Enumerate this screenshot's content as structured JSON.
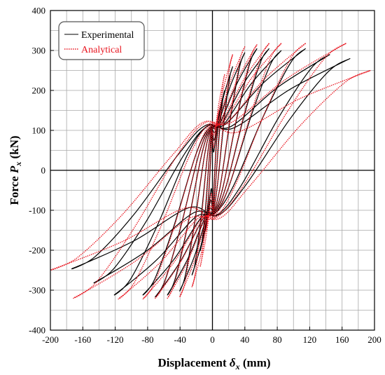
{
  "chart_data": {
    "type": "line",
    "title": "",
    "xlabel": "Displacement",
    "xlabel_symbol": "δ",
    "xlabel_sub": "x",
    "xlabel_unit": "(mm)",
    "ylabel": "Force",
    "ylabel_symbol": "P",
    "ylabel_sub": "x",
    "ylabel_unit": "(kN)",
    "xlim": [
      -200,
      200
    ],
    "ylim": [
      -400,
      400
    ],
    "xticks": [
      -200,
      -160,
      -120,
      -80,
      -40,
      0,
      40,
      80,
      120,
      160,
      200
    ],
    "yticks": [
      -400,
      -300,
      -200,
      -100,
      0,
      100,
      200,
      300,
      400
    ],
    "xgrid_step": 20,
    "ygrid_step": 50,
    "grid": true,
    "legend": "top-left",
    "series": [
      {
        "name": "Experimental",
        "color": "#000000",
        "style": "solid",
        "loops": [
          {
            "amp_pos": 8,
            "amp_neg": -8,
            "f_pos": 120,
            "f_neg": -120
          },
          {
            "amp_pos": 15,
            "amp_neg": -15,
            "f_pos": 200,
            "f_neg": -200
          },
          {
            "amp_pos": 25,
            "amp_neg": -25,
            "f_pos": 260,
            "f_neg": -260
          },
          {
            "amp_pos": 40,
            "amp_neg": -40,
            "f_pos": 295,
            "f_neg": -300
          },
          {
            "amp_pos": 55,
            "amp_neg": -55,
            "f_pos": 305,
            "f_neg": -310
          },
          {
            "amp_pos": 70,
            "amp_neg": -70,
            "f_pos": 305,
            "f_neg": -315
          },
          {
            "amp_pos": 85,
            "amp_neg": -85,
            "f_pos": 300,
            "f_neg": -310
          },
          {
            "amp_pos": 115,
            "amp_neg": -120,
            "f_pos": 305,
            "f_neg": -310
          },
          {
            "amp_pos": 145,
            "amp_neg": -145,
            "f_pos": 290,
            "f_neg": -280
          },
          {
            "amp_pos": 170,
            "amp_neg": -172,
            "f_pos": 280,
            "f_neg": -245
          }
        ]
      },
      {
        "name": "Analytical",
        "color": "#e8141e",
        "style": "dotted",
        "loops": [
          {
            "amp_pos": 8,
            "amp_neg": -8,
            "f_pos": 150,
            "f_neg": -150
          },
          {
            "amp_pos": 15,
            "amp_neg": -15,
            "f_pos": 240,
            "f_neg": -240
          },
          {
            "amp_pos": 25,
            "amp_neg": -25,
            "f_pos": 290,
            "f_neg": -290
          },
          {
            "amp_pos": 40,
            "amp_neg": -40,
            "f_pos": 310,
            "f_neg": -315
          },
          {
            "amp_pos": 55,
            "amp_neg": -55,
            "f_pos": 315,
            "f_neg": -318
          },
          {
            "amp_pos": 70,
            "amp_neg": -70,
            "f_pos": 318,
            "f_neg": -318
          },
          {
            "amp_pos": 85,
            "amp_neg": -85,
            "f_pos": 318,
            "f_neg": -320
          },
          {
            "amp_pos": 115,
            "amp_neg": -115,
            "f_pos": 318,
            "f_neg": -320
          },
          {
            "amp_pos": 165,
            "amp_neg": -170,
            "f_pos": 318,
            "f_neg": -318
          },
          {
            "amp_pos": 195,
            "amp_neg": -198,
            "f_pos": 250,
            "f_neg": -248
          }
        ]
      }
    ]
  }
}
